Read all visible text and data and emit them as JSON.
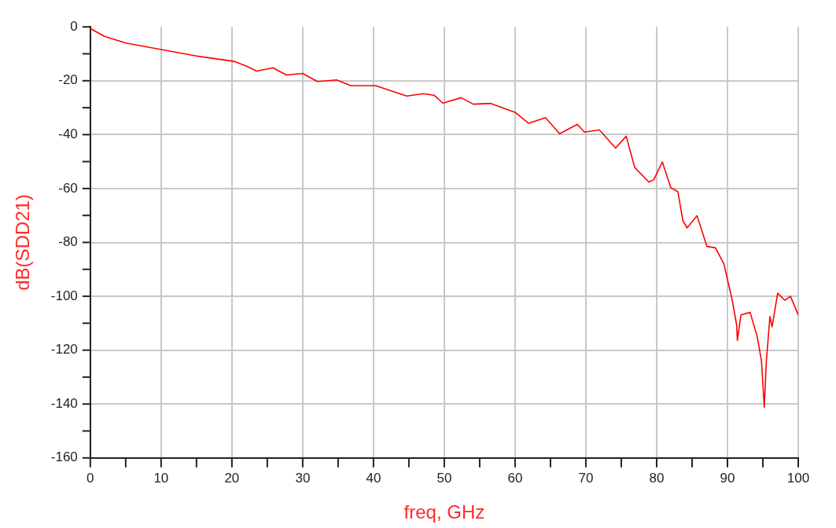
{
  "chart_data": {
    "type": "line",
    "xlabel": "freq, GHz",
    "ylabel": "dB(SDD21)",
    "grid": true,
    "legend": false,
    "marker": "none",
    "line_style": "solid",
    "xlim": [
      0,
      100
    ],
    "ylim": [
      -160,
      0
    ],
    "xticks": [
      0,
      {
        "value": 5,
        "label": null
      },
      10,
      {
        "value": 15,
        "label": null
      },
      20,
      {
        "value": 25,
        "label": null
      },
      30,
      {
        "value": 35,
        "label": null
      },
      40,
      {
        "value": 45,
        "label": null
      },
      50,
      {
        "value": 55,
        "label": null
      },
      60,
      {
        "value": 65,
        "label": null
      },
      70,
      {
        "value": 75,
        "label": null
      },
      80,
      {
        "value": 85,
        "label": null
      },
      90,
      {
        "value": 95,
        "label": null
      },
      100
    ],
    "yticks": [
      -160,
      {
        "value": -150,
        "label": null
      },
      -140,
      {
        "value": -130,
        "label": null
      },
      -120,
      {
        "value": -110,
        "label": null
      },
      -100,
      {
        "value": -90,
        "label": null
      },
      -80,
      {
        "value": -70,
        "label": null
      },
      -60,
      {
        "value": -50,
        "label": null
      },
      -40,
      {
        "value": -30,
        "label": null
      },
      -20,
      {
        "value": -10,
        "label": null
      },
      0
    ],
    "series": [
      {
        "color": "#ff0000",
        "x": [
          0,
          0.2,
          2,
          5,
          10,
          15,
          20.3,
          22,
          23.5,
          25.8,
          27.7,
          30,
          32.1,
          34.8,
          36.8,
          40.3,
          44.7,
          47,
          48.6,
          49.8,
          52.4,
          54.1,
          56.5,
          60,
          61.9,
          64.3,
          66.3,
          68.8,
          69.8,
          71.9,
          74.2,
          75.7,
          76.9,
          78.9,
          79.6,
          80.8,
          82,
          83,
          83.7,
          84.3,
          85.7,
          87.1,
          88.3,
          89.5,
          90.7,
          91.3,
          91.4,
          91.9,
          93.2,
          94.2,
          94.8,
          95.2,
          95.5,
          96,
          96.3,
          97.1,
          98.1,
          98.9,
          99.9,
          100
        ],
        "values": [
          -0.5,
          -0.9,
          -3.5,
          -6,
          -8.4,
          -10.8,
          -12.8,
          -14.5,
          -16.4,
          -15.2,
          -17.9,
          -17.3,
          -20.3,
          -19.7,
          -21.8,
          -21.8,
          -25.7,
          -24.8,
          -25.4,
          -28.3,
          -26.3,
          -28.7,
          -28.4,
          -31.7,
          -35.8,
          -33.7,
          -39.7,
          -36.2,
          -39.1,
          -38.2,
          -45,
          -40.6,
          -52.2,
          -57.6,
          -56.7,
          -50.1,
          -59.7,
          -61.2,
          -71.9,
          -74.6,
          -70.1,
          -81.5,
          -82,
          -88,
          -101.8,
          -110.7,
          -116.4,
          -106.9,
          -106,
          -114.9,
          -123.9,
          -141.2,
          -123.9,
          -107.5,
          -111.3,
          -98.8,
          -101.5,
          -100,
          -106.3,
          -107
        ]
      }
    ]
  }
}
